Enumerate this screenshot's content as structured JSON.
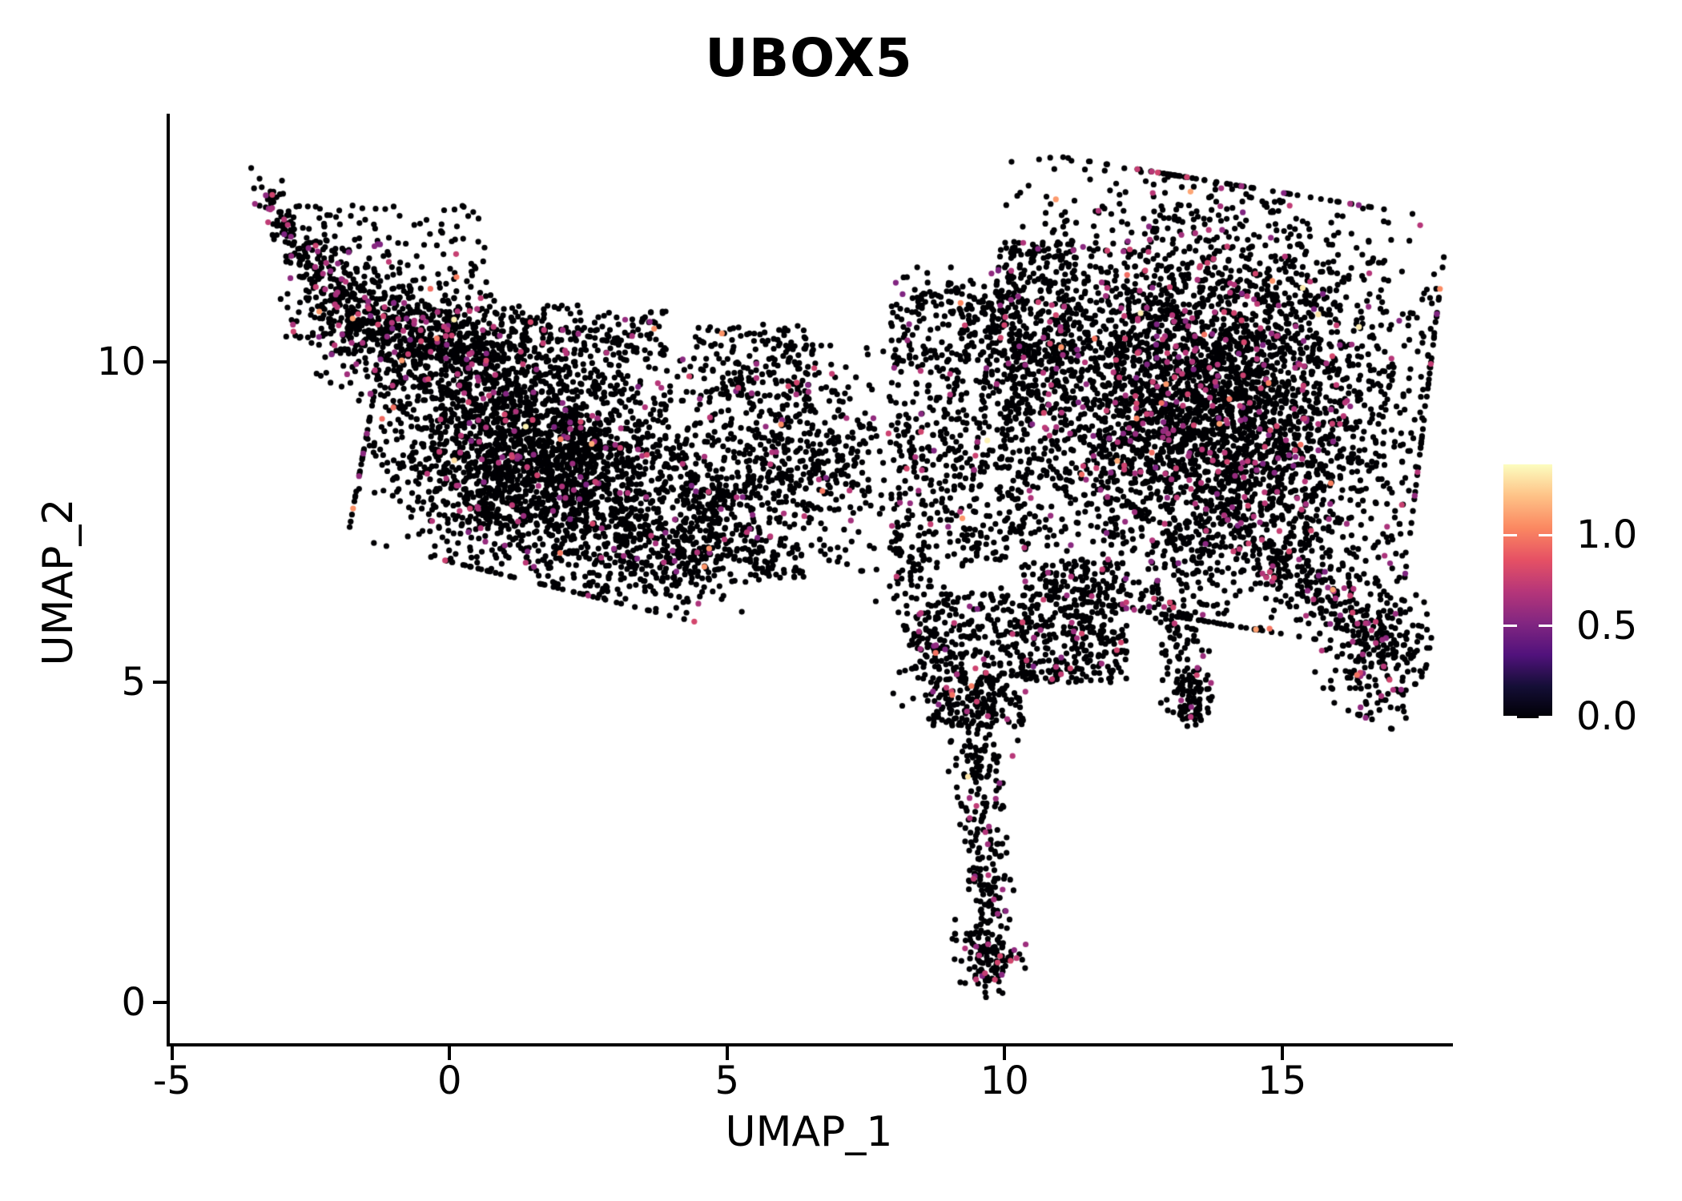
{
  "figure": {
    "title": "UBOX5",
    "background_color": "#ffffff",
    "axis_color": "#000000"
  },
  "axes": {
    "x": {
      "label": "UMAP_1",
      "ticks": [
        "-5",
        "0",
        "5",
        "10",
        "15"
      ],
      "tick_values": [
        -5,
        0,
        5,
        10,
        15
      ]
    },
    "y": {
      "label": "UMAP_2",
      "ticks": [
        "0",
        "5",
        "10"
      ],
      "tick_values": [
        0,
        5,
        10
      ]
    }
  },
  "colorbar": {
    "labels": [
      {
        "text": "1.0",
        "value": 1.0
      },
      {
        "text": "0.5",
        "value": 0.5
      },
      {
        "text": "0.0",
        "value": 0.0
      }
    ],
    "max_value": 1.39,
    "min_value": 0.0,
    "tick_color": "#ffffff"
  },
  "chart_data": {
    "type": "scatter",
    "title": "UBOX5",
    "xlabel": "UMAP_1",
    "ylabel": "UMAP_2",
    "xlim": [
      -5.07,
      18.02
    ],
    "ylim": [
      -0.66,
      13.88
    ],
    "x_ticks": [
      -5,
      0,
      5,
      10,
      15
    ],
    "y_ticks": [
      0,
      5,
      10
    ],
    "grid": false,
    "legend_position": "right",
    "point_radius_px": 3.6,
    "seed": 7,
    "value_palette": {
      "vmax": 1.39,
      "stops": [
        {
          "t": 0.0,
          "c": "#000004"
        },
        {
          "t": 0.125,
          "c": "#140e36"
        },
        {
          "t": 0.25,
          "c": "#51127c"
        },
        {
          "t": 0.375,
          "c": "#822681"
        },
        {
          "t": 0.5,
          "c": "#b63679"
        },
        {
          "t": 0.625,
          "c": "#e65164"
        },
        {
          "t": 0.75,
          "c": "#fb8861"
        },
        {
          "t": 0.875,
          "c": "#fec287"
        },
        {
          "t": 1.0,
          "c": "#fcfdbf"
        }
      ]
    },
    "expression_value_ranges": {
      "zero": 0.0,
      "mid": [
        0.5,
        0.8
      ],
      "high": [
        0.95,
        1.15
      ],
      "top": [
        1.28,
        1.36
      ]
    },
    "default_color_probs": {
      "p_mid": 0.06,
      "p_high": 0.003,
      "p_top": 0.0006
    },
    "n_points_total": 11960,
    "clusters": [
      {
        "type": "strand",
        "x1": -3.42,
        "y1": 12.75,
        "x2": -2.55,
        "y2": 11.55,
        "w": 0.16,
        "n": 95,
        "p_mid": 0.16
      },
      {
        "type": "strand",
        "x1": -2.55,
        "y1": 11.55,
        "x2": -1.35,
        "y2": 10.5,
        "w": 0.3,
        "n": 170,
        "p_mid": 0.12
      },
      {
        "type": "box",
        "x1": -2.75,
        "y1": 11.0,
        "x2": 0.7,
        "y2": 12.45,
        "n": 150,
        "p_mid": 0.07
      },
      {
        "type": "strand",
        "x1": -2.05,
        "y1": 10.65,
        "x2": 0.9,
        "y2": 10.0,
        "w": 0.5,
        "n": 620,
        "p_mid": 0.09
      },
      {
        "type": "gauss",
        "cx": 1.7,
        "cy": 8.55,
        "sx": 1.45,
        "sy": 0.9,
        "rot": -12,
        "n": 2550,
        "p_mid": 0.05
      },
      {
        "type": "strand",
        "x1": 2.9,
        "y1": 7.15,
        "x2": 4.7,
        "y2": 6.7,
        "w": 0.4,
        "n": 230,
        "p_mid": 0.05
      },
      {
        "type": "box",
        "x1": -0.9,
        "y1": 10.0,
        "x2": 3.9,
        "y2": 10.9,
        "n": 230,
        "p_mid": 0.06
      },
      {
        "type": "gauss",
        "cx": 6.2,
        "cy": 8.5,
        "sx": 1.05,
        "sy": 0.8,
        "rot": 0,
        "n": 600,
        "p_mid": 0.05
      },
      {
        "type": "box",
        "x1": 4.4,
        "y1": 9.4,
        "x2": 6.6,
        "y2": 10.6,
        "n": 130,
        "p_mid": 0.05
      },
      {
        "type": "box",
        "x1": 5.4,
        "y1": 6.6,
        "x2": 6.4,
        "y2": 7.3,
        "n": 60,
        "p_mid": 0.05
      },
      {
        "type": "box",
        "x1": 8.0,
        "y1": 6.9,
        "x2": 10.5,
        "y2": 10.2,
        "n": 420,
        "p_mid": 0.06
      },
      {
        "type": "strand",
        "x1": 8.3,
        "y1": 11.1,
        "x2": 10.3,
        "y2": 10.85,
        "w": 0.22,
        "n": 90,
        "p_mid": 0.05
      },
      {
        "type": "box",
        "x1": 7.9,
        "y1": 10.0,
        "x2": 10.4,
        "y2": 10.95,
        "n": 140,
        "p_mid": 0.05
      },
      {
        "type": "strand",
        "x1": 8.15,
        "y1": 7.3,
        "x2": 8.8,
        "y2": 4.5,
        "w": 0.3,
        "n": 150,
        "p_mid": 0.06
      },
      {
        "type": "box",
        "x1": 8.7,
        "y1": 4.3,
        "x2": 10.4,
        "y2": 6.4,
        "n": 300,
        "p_mid": 0.06
      },
      {
        "type": "box",
        "x1": 10.3,
        "y1": 5.0,
        "x2": 12.2,
        "y2": 6.9,
        "n": 380,
        "p_mid": 0.06
      },
      {
        "type": "strand",
        "x1": 9.7,
        "y1": 5.2,
        "x2": 9.55,
        "y2": 2.9,
        "w": 0.27,
        "n": 160,
        "p_mid": 0.07
      },
      {
        "type": "strand",
        "x1": 9.55,
        "y1": 2.9,
        "x2": 9.8,
        "y2": 1.2,
        "w": 0.2,
        "n": 110,
        "p_mid": 0.07
      },
      {
        "type": "gauss",
        "cx": 9.72,
        "cy": 0.7,
        "sx": 0.3,
        "sy": 0.28,
        "rot": 0,
        "n": 130,
        "p_mid": 0.07
      },
      {
        "type": "gauss",
        "cx": 13.6,
        "cy": 9.4,
        "sx": 1.8,
        "sy": 1.55,
        "rot": -8,
        "n": 4300,
        "p_mid": 0.075,
        "p_high": 0.006,
        "p_top": 0.0012
      },
      {
        "type": "box",
        "x1": 10.0,
        "y1": 9.2,
        "x2": 11.3,
        "y2": 11.9,
        "n": 260,
        "p_mid": 0.06
      },
      {
        "type": "strand",
        "x1": 13.05,
        "y1": 6.3,
        "x2": 13.45,
        "y2": 4.45,
        "w": 0.2,
        "n": 120,
        "p_mid": 0.07
      },
      {
        "type": "gauss",
        "cx": 13.3,
        "cy": 4.7,
        "sx": 0.22,
        "sy": 0.24,
        "rot": 0,
        "n": 45,
        "p_mid": 0.07
      },
      {
        "type": "strand",
        "x1": 14.9,
        "y1": 7.0,
        "x2": 16.35,
        "y2": 6.0,
        "w": 0.3,
        "n": 150,
        "p_mid": 0.07
      },
      {
        "type": "gauss",
        "cx": 16.7,
        "cy": 5.5,
        "sx": 0.42,
        "sy": 0.48,
        "rot": -20,
        "n": 250,
        "p_mid": 0.11
      },
      {
        "type": "box",
        "x1": 4.2,
        "y1": 6.9,
        "x2": 5.6,
        "y2": 8.0,
        "n": 120,
        "p_mid": 0.05
      }
    ]
  }
}
